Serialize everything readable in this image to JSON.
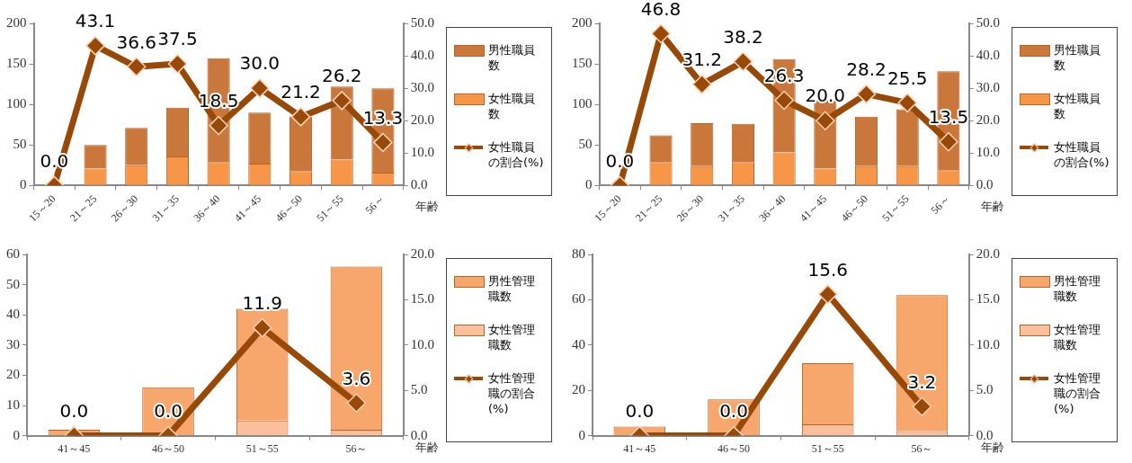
{
  "chart_data": [
    {
      "type": "bar",
      "stacked": true,
      "legend": "right",
      "marker": "diamond",
      "xlabel": "年齢",
      "categories": [
        "15～20",
        "21～25",
        "26～30",
        "31～35",
        "36～40",
        "41～45",
        "46～50",
        "51～55",
        "56～"
      ],
      "series": [
        {
          "name": "女性職員数",
          "color": "#f79646",
          "values": [
            0,
            21,
            25,
            36,
            29,
            27,
            18,
            32,
            16
          ]
        },
        {
          "name": "男性職員数",
          "color": "#c9773a",
          "values": [
            0,
            29,
            46,
            60,
            128,
            63,
            67,
            90,
            104
          ]
        },
        {
          "name": "女性職員の割合(%)",
          "type": "line",
          "axis": "y2",
          "color": "#984807",
          "values": [
            0.0,
            43.1,
            36.6,
            37.5,
            18.5,
            30.0,
            21.2,
            26.2,
            13.3
          ],
          "value_labels": [
            "0.0",
            "43.1",
            "36.6",
            "37.5",
            "18.5",
            "30.0",
            "21.2",
            "26.2",
            "13.3"
          ]
        }
      ],
      "ylim": [
        0,
        200
      ],
      "yticks": [
        0,
        50,
        100,
        150,
        200
      ],
      "y2lim": [
        0,
        50
      ],
      "y2ticks": [
        {
          "value": 0,
          "label": "0.0"
        },
        {
          "value": 10,
          "label": "10.0"
        },
        {
          "value": 20,
          "label": "20.0"
        },
        {
          "value": 30,
          "label": "30.0"
        },
        {
          "value": 40,
          "label": "40.0"
        },
        {
          "value": 50,
          "label": "50.0"
        }
      ]
    },
    {
      "type": "bar",
      "stacked": true,
      "legend": "right",
      "marker": "diamond",
      "xlabel": "年齢",
      "categories": [
        "15～20",
        "21～25",
        "26～30",
        "31～35",
        "36～40",
        "41～45",
        "46～50",
        "51～55",
        "56～"
      ],
      "series": [
        {
          "name": "女性職員数",
          "color": "#f79646",
          "values": [
            0,
            29,
            24,
            29,
            41,
            21,
            24,
            24,
            19
          ]
        },
        {
          "name": "男性職員数",
          "color": "#c9773a",
          "values": [
            0,
            33,
            53,
            47,
            115,
            84,
            61,
            70,
            122
          ]
        },
        {
          "name": "女性職員の割合(%)",
          "type": "line",
          "axis": "y2",
          "color": "#984807",
          "values": [
            0.0,
            46.8,
            31.2,
            38.2,
            26.3,
            20.0,
            28.2,
            25.5,
            13.5
          ],
          "value_labels": [
            "0.0",
            "46.8",
            "31.2",
            "38.2",
            "26.3",
            "20.0",
            "28.2",
            "25.5",
            "13.5"
          ]
        }
      ],
      "ylim": [
        0,
        200
      ],
      "yticks": [
        0,
        50,
        100,
        150,
        200
      ],
      "y2lim": [
        0,
        50
      ],
      "y2ticks": [
        {
          "value": 0,
          "label": "0.0"
        },
        {
          "value": 10,
          "label": "10.0"
        },
        {
          "value": 20,
          "label": "20.0"
        },
        {
          "value": 30,
          "label": "30.0"
        },
        {
          "value": 40,
          "label": "40.0"
        },
        {
          "value": 50,
          "label": "50.0"
        }
      ]
    },
    {
      "type": "bar",
      "stacked": true,
      "legend": "right",
      "marker": "diamond",
      "xlabel": "年齢",
      "categories": [
        "41～45",
        "46～50",
        "51～55",
        "56～"
      ],
      "series": [
        {
          "name": "女性管理職数",
          "color": "#fac09e",
          "values": [
            0,
            0,
            5,
            2
          ]
        },
        {
          "name": "男性管理職数",
          "color": "#f7a76c",
          "values": [
            2,
            16,
            37,
            54
          ]
        },
        {
          "name": "女性管理職の割合(%)",
          "type": "line",
          "axis": "y2",
          "color": "#984807",
          "values": [
            0.0,
            0.0,
            11.9,
            3.6
          ],
          "value_labels": [
            "0.0",
            "0.0",
            "11.9",
            "3.6"
          ]
        }
      ],
      "ylim": [
        0,
        60
      ],
      "yticks": [
        0,
        10,
        20,
        30,
        40,
        50,
        60
      ],
      "y2lim": [
        0,
        20
      ],
      "y2ticks": [
        {
          "value": 0,
          "label": "0.0"
        },
        {
          "value": 5,
          "label": "5.0"
        },
        {
          "value": 10,
          "label": "10.0"
        },
        {
          "value": 15,
          "label": "15.0"
        },
        {
          "value": 20,
          "label": "20.0"
        }
      ]
    },
    {
      "type": "bar",
      "stacked": true,
      "legend": "right",
      "marker": "diamond",
      "xlabel": "年齢",
      "categories": [
        "41～45",
        "46～50",
        "51～55",
        "56～"
      ],
      "series": [
        {
          "name": "女性管理職数",
          "color": "#fac09e",
          "values": [
            0,
            0,
            5,
            2
          ]
        },
        {
          "name": "男性管理職数",
          "color": "#f7a76c",
          "values": [
            4,
            16,
            27,
            60
          ]
        },
        {
          "name": "女性管理職の割合(%)",
          "type": "line",
          "axis": "y2",
          "color": "#984807",
          "values": [
            0.0,
            0.0,
            15.6,
            3.2
          ],
          "value_labels": [
            "0.0",
            "0.0",
            "15.6",
            "3.2"
          ]
        }
      ],
      "ylim": [
        0,
        80
      ],
      "yticks": [
        0,
        20,
        40,
        60,
        80
      ],
      "y2lim": [
        0,
        20
      ],
      "y2ticks": [
        {
          "value": 0,
          "label": "0.0"
        },
        {
          "value": 5,
          "label": "5.0"
        },
        {
          "value": 10,
          "label": "10.0"
        },
        {
          "value": 15,
          "label": "15.0"
        },
        {
          "value": 20,
          "label": "20.0"
        }
      ]
    }
  ]
}
